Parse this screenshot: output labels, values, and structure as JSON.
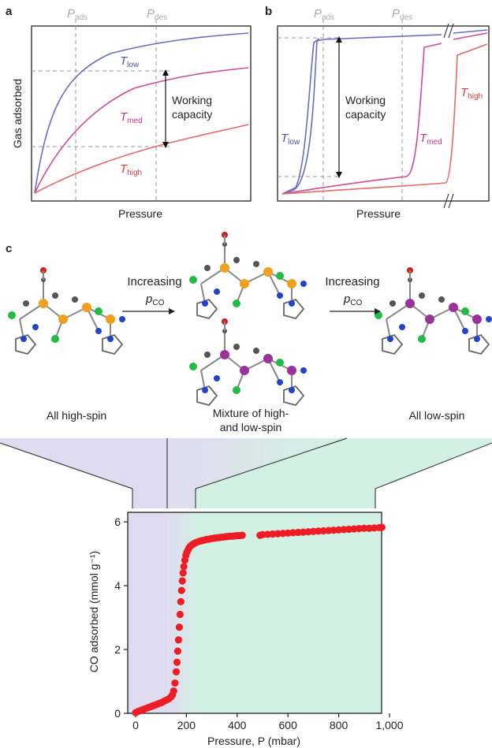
{
  "figure": {
    "panel_a": {
      "letter": "a",
      "top_labels": {
        "ads": "P",
        "ads_sub": "ads",
        "des": "P",
        "des_sub": "des"
      },
      "ylabel": "Gas adsorbed",
      "xlabel": "Pressure",
      "curve_labels": [
        {
          "main": "T",
          "sub": "low",
          "color": "#4a4fb5"
        },
        {
          "main": "T",
          "sub": "med",
          "color": "#c8328c"
        },
        {
          "main": "T",
          "sub": "high",
          "color": "#dd3b3b"
        }
      ],
      "annotation_line1": "Working",
      "annotation_line2": "capacity"
    },
    "panel_b": {
      "letter": "b",
      "top_labels": {
        "ads": "P",
        "ads_sub": "ads",
        "des": "P",
        "des_sub": "des"
      },
      "xlabel": "Pressure",
      "curve_labels": [
        {
          "main": "T",
          "sub": "low",
          "color": "#4a4fb5"
        },
        {
          "main": "T",
          "sub": "med",
          "color": "#c8328c"
        },
        {
          "main": "T",
          "sub": "high",
          "color": "#dd3b3b"
        }
      ],
      "annotation_line1": "Working",
      "annotation_line2": "capacity"
    },
    "panel_c": {
      "letter": "c",
      "arrow_label_1": "Increasing",
      "arrow_label_2": "Increasing",
      "p_main": "p",
      "p_sub": "CO",
      "caption_left": "All high-spin",
      "caption_mid_1": "Mixture of high-",
      "caption_mid_2": "and low-spin",
      "caption_right": "All low-spin"
    }
  },
  "colors": {
    "low": "#4a4fb5",
    "med": "#c8328c",
    "high": "#dd3b3b",
    "purple_bg": "#e0dcf0",
    "green_bg": "#d2f0e3",
    "data_point": "#ee1c24",
    "dashed": "#9a9a9a"
  },
  "chart_data": {
    "type": "scatter",
    "ylabel": "CO adsorbed (mmol g⁻¹)",
    "xlabel": "Pressure, P (mbar)",
    "xlim": [
      0,
      1000
    ],
    "ylim": [
      0,
      6.3
    ],
    "xticks": [
      0,
      200,
      400,
      600,
      800,
      1000
    ],
    "xtick_labels": [
      "0",
      "200",
      "400",
      "600",
      "800",
      "1,000"
    ],
    "yticks": [
      0,
      2,
      4,
      6
    ],
    "ytick_labels": [
      "0",
      "2",
      "4",
      "6"
    ],
    "regions": [
      {
        "name": "high-spin",
        "x_range": [
          0,
          130
        ],
        "color": "#e0dcf0"
      },
      {
        "name": "mixture",
        "x_range": [
          130,
          250
        ],
        "color": "gradient"
      },
      {
        "name": "low-spin",
        "x_range": [
          250,
          1000
        ],
        "color": "#d2f0e3"
      }
    ],
    "series": [
      {
        "x": [
          0,
          10,
          20,
          30,
          40,
          50,
          60,
          70,
          80,
          90,
          100,
          110,
          120,
          130,
          140,
          145,
          150,
          155,
          160,
          163,
          166,
          169,
          172,
          175,
          178,
          181,
          184,
          187,
          190,
          194,
          198,
          202,
          206,
          210,
          215,
          220,
          226,
          232,
          240,
          250,
          260,
          270,
          280,
          290,
          300,
          310,
          320,
          330,
          340,
          350,
          360,
          370,
          380,
          390,
          400,
          410,
          420,
          490,
          500,
          520,
          540,
          560,
          580,
          600,
          620,
          640,
          660,
          680,
          700,
          720,
          740,
          760,
          780,
          800,
          820,
          840,
          860,
          880,
          900,
          920,
          940,
          960,
          970
        ],
        "y": [
          0.02,
          0.06,
          0.09,
          0.12,
          0.15,
          0.18,
          0.21,
          0.24,
          0.27,
          0.3,
          0.33,
          0.37,
          0.41,
          0.45,
          0.52,
          0.58,
          0.7,
          0.95,
          1.3,
          1.6,
          1.95,
          2.3,
          2.7,
          3.1,
          3.5,
          3.85,
          4.15,
          4.4,
          4.6,
          4.8,
          4.95,
          5.05,
          5.12,
          5.18,
          5.23,
          5.27,
          5.3,
          5.33,
          5.36,
          5.39,
          5.41,
          5.43,
          5.45,
          5.46,
          5.48,
          5.49,
          5.5,
          5.51,
          5.52,
          5.53,
          5.54,
          5.55,
          5.55,
          5.56,
          5.57,
          5.57,
          5.58,
          5.58,
          5.6,
          5.61,
          5.62,
          5.63,
          5.64,
          5.65,
          5.66,
          5.67,
          5.68,
          5.69,
          5.7,
          5.71,
          5.72,
          5.73,
          5.74,
          5.75,
          5.76,
          5.77,
          5.78,
          5.79,
          5.8,
          5.8,
          5.81,
          5.82,
          5.83
        ]
      }
    ]
  }
}
